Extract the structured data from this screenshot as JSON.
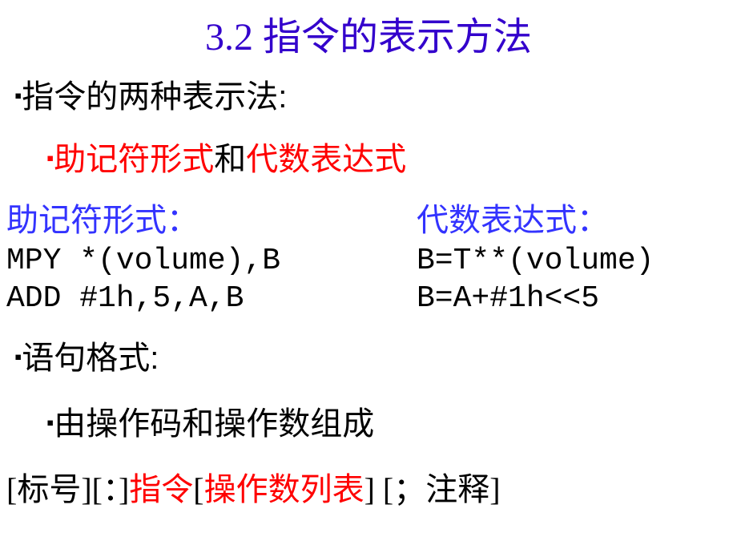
{
  "colors": {
    "title": "#3300cc",
    "black": "#000000",
    "red": "#ff0000",
    "blue": "#3333ff"
  },
  "title": "3.2  指令的表示方法",
  "line1": {
    "bullet": "▪",
    "text": "指令的两种表示法:"
  },
  "line2": {
    "bullet": "▪",
    "p1": "助记符形式",
    "p2": "和",
    "p3": "代数表达式"
  },
  "headers": {
    "left": "助记符形式：",
    "right": "代数表达式："
  },
  "code": [
    {
      "left": "MPY *(volume),B",
      "right": "B=T**(volume)"
    },
    {
      "left": "ADD #1h,5,A,B",
      "right": "B=A+#1h<<5"
    }
  ],
  "line5": {
    "bullet": "▪",
    "text": "语句格式:"
  },
  "line6": {
    "bullet": "▪",
    "text": "由操作码和操作数组成"
  },
  "line7": {
    "p1": "[标号][：]",
    "p2": "指令",
    "p3": "[",
    "p4": "操作数列表",
    "p5": "] [；注释]"
  }
}
